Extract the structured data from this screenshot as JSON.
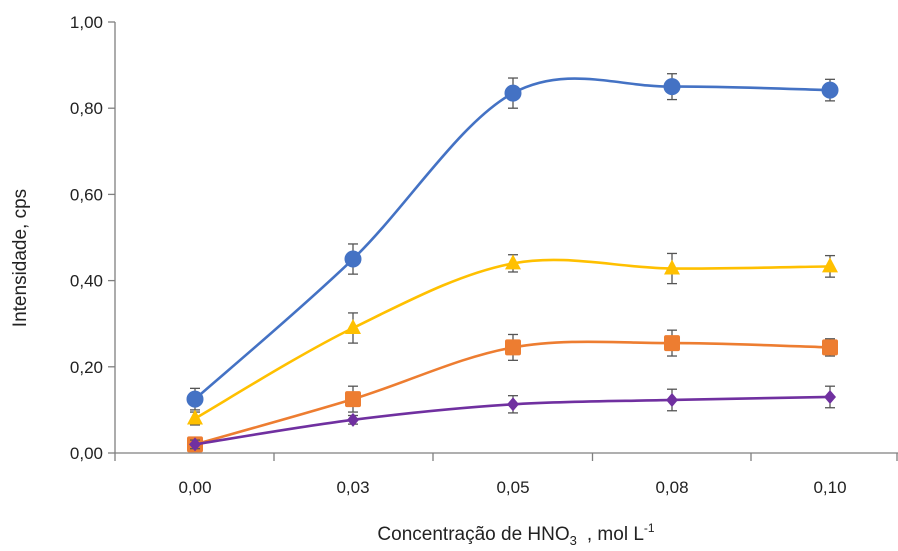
{
  "chart_data": {
    "type": "line",
    "xlabel": "Concentração de HNO",
    "xlabel_sub": "3",
    "xlabel_units": ", mol L",
    "xlabel_sup": "-1",
    "ylabel": "Intensidade, cps",
    "categories": [
      "0,00",
      "0,03",
      "0,05",
      "0,08",
      "0,10"
    ],
    "x": [
      0.0,
      0.03,
      0.05,
      0.08,
      0.1
    ],
    "ylim": [
      0,
      1.0
    ],
    "yticks": [
      0,
      0.2,
      0.4,
      0.6,
      0.8,
      1.0
    ],
    "ytick_labels": [
      "0,00",
      "0,20",
      "0,40",
      "0,60",
      "0,80",
      "1,00"
    ],
    "grid": false,
    "legend": "none",
    "series": [
      {
        "marker": "circle",
        "color": "#4472C4",
        "values": [
          0.125,
          0.45,
          0.835,
          0.85,
          0.842
        ],
        "errors": [
          0.025,
          0.035,
          0.035,
          0.03,
          0.025
        ]
      },
      {
        "marker": "triangle",
        "color": "#FFC000",
        "values": [
          0.08,
          0.29,
          0.44,
          0.428,
          0.433
        ],
        "errors": [
          0.015,
          0.035,
          0.02,
          0.035,
          0.025
        ]
      },
      {
        "marker": "square",
        "color": "#ED7D31",
        "values": [
          0.02,
          0.125,
          0.245,
          0.255,
          0.245
        ],
        "errors": [
          0.015,
          0.03,
          0.03,
          0.03,
          0.02
        ]
      },
      {
        "marker": "diamond",
        "color": "#7030A0",
        "values": [
          0.02,
          0.077,
          0.113,
          0.123,
          0.13
        ],
        "errors": [
          0.01,
          0.01,
          0.02,
          0.025,
          0.025
        ]
      }
    ]
  }
}
